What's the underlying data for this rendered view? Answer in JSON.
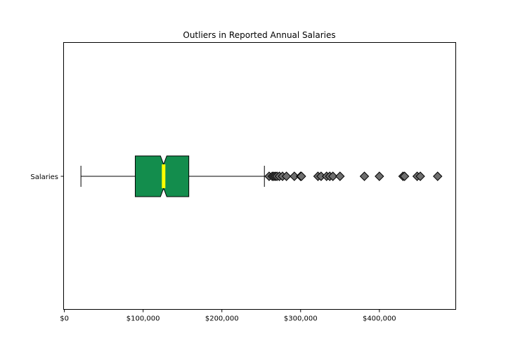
{
  "chart_data": {
    "type": "boxplot",
    "orientation": "horizontal",
    "title": "Outliers in Reported Annual Salaries",
    "xlabel": "",
    "ylabel": "",
    "xlim": [
      -1000,
      497000
    ],
    "x_ticks": [
      {
        "value": 0,
        "label": "$0"
      },
      {
        "value": 100000,
        "label": "$100,000"
      },
      {
        "value": 200000,
        "label": "$200,000"
      },
      {
        "value": 300000,
        "label": "$300,000"
      },
      {
        "value": 400000,
        "label": "$400,000"
      }
    ],
    "category_label": "Salaries",
    "grid": false,
    "notched": true,
    "box": {
      "whisker_low": 21000,
      "q1": 90000,
      "median": 126000,
      "notch_low": 122000,
      "notch_high": 130000,
      "q3": 158000,
      "whisker_high": 254000
    },
    "outliers": [
      260000,
      264000,
      266000,
      268000,
      270000,
      273000,
      277000,
      282000,
      292000,
      300000,
      301000,
      322000,
      326000,
      333000,
      337000,
      341000,
      350000,
      381000,
      400000,
      430000,
      432000,
      448000,
      452000,
      474000
    ],
    "colors": {
      "box_fill": "#138d4d",
      "median": "#ffff00",
      "outlier_fill": "#6e6e6e",
      "line": "#000000"
    },
    "outlier_marker": "diamond"
  }
}
